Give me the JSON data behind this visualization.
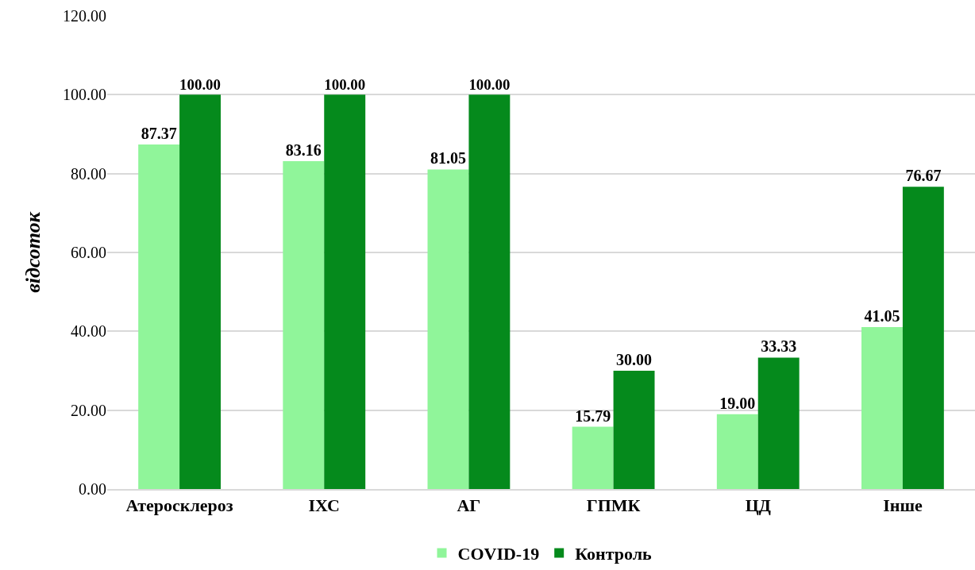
{
  "chart_data": {
    "type": "bar",
    "ylabel": "відсоток",
    "categories": [
      "Атеросклероз",
      "ІХС",
      "АГ",
      "ГПМК",
      "ЦД",
      "Інше"
    ],
    "series": [
      {
        "name": "COVID-19",
        "color": "#90f59a",
        "values": [
          87.37,
          83.16,
          81.05,
          15.79,
          19.0,
          41.05
        ],
        "value_labels": [
          "87.37",
          "83.16",
          "81.05",
          "15.79",
          "19.00",
          "41.05"
        ]
      },
      {
        "name": "Контроль",
        "color": "#058a1c",
        "values": [
          100,
          100,
          100,
          30,
          33.33,
          76.67
        ],
        "value_labels": [
          "100.00",
          "100.00",
          "100.00",
          "30.00",
          "33.33",
          "76.67"
        ]
      }
    ],
    "ylim": [
      0,
      120
    ],
    "yticks": [
      {
        "value": 0,
        "label": "0.00"
      },
      {
        "value": 20,
        "label": "20.00"
      },
      {
        "value": 40,
        "label": "40.00"
      },
      {
        "value": 60,
        "label": "60.00"
      },
      {
        "value": 80,
        "label": "80.00"
      },
      {
        "value": 100,
        "label": "100.00"
      },
      {
        "value": 120,
        "label": "120.00"
      }
    ],
    "grid": "y",
    "legend": "bottom"
  }
}
